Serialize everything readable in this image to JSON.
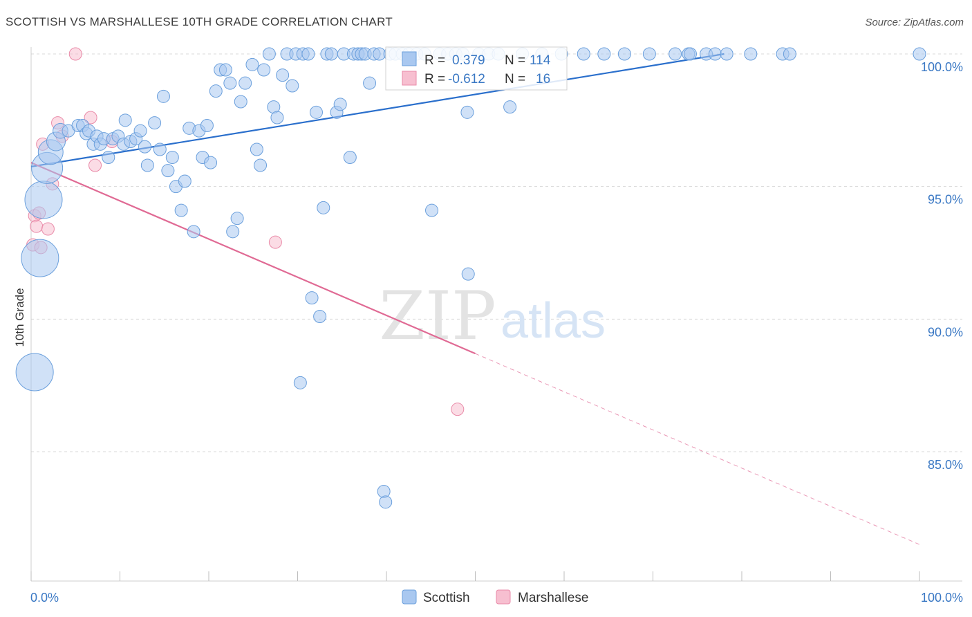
{
  "header": {
    "title": "SCOTTISH VS MARSHALLESE 10TH GRADE CORRELATION CHART",
    "source": "Source: ZipAtlas.com"
  },
  "watermark": {
    "zip": "ZIP",
    "atlas": "atlas"
  },
  "colors": {
    "scottish_fill": "#a9c8f0",
    "scottish_stroke": "#6a9fdc",
    "scottish_line": "#2a6fcc",
    "marshallese_fill": "#f7bfd0",
    "marshallese_stroke": "#e98aa8",
    "marshallese_line": "#e06a94",
    "axis_label": "#3a78c4",
    "grid": "#d8d8d8"
  },
  "legend_box": {
    "rows": [
      {
        "r_label": "R =",
        "r_value": "0.379",
        "n_label": "N =",
        "n_value": "114"
      },
      {
        "r_label": "R =",
        "r_value": "-0.612",
        "n_label": "N =",
        "n_value": "16"
      }
    ]
  },
  "bottom_legend": [
    "Scottish",
    "Marshallese"
  ],
  "chart_data": {
    "type": "scatter",
    "title": "SCOTTISH VS MARSHALLESE 10TH GRADE CORRELATION CHART",
    "xlabel": "",
    "ylabel": "10th Grade",
    "xlim": [
      0,
      100
    ],
    "ylim": [
      80.7,
      100.7
    ],
    "x_tick_labels": [
      "0.0%",
      "100.0%"
    ],
    "y_ticks": [
      85,
      90,
      95,
      100
    ],
    "y_tick_labels": [
      "85.0%",
      "90.0%",
      "95.0%",
      "100.0%"
    ],
    "grid": true,
    "legend_position": "bottom-center",
    "series": [
      {
        "name": "Scottish",
        "R": 0.379,
        "N": 114,
        "trend": {
          "x": [
            0,
            78
          ],
          "y": [
            95.75,
            100.0
          ]
        },
        "points": [
          {
            "x": 0.4,
            "y": 88.0,
            "s": 3
          },
          {
            "x": 1.0,
            "y": 92.3,
            "s": 3
          },
          {
            "x": 1.4,
            "y": 94.5,
            "s": 3
          },
          {
            "x": 1.8,
            "y": 95.7,
            "s": 2.5
          },
          {
            "x": 2.2,
            "y": 96.3,
            "s": 2
          },
          {
            "x": 2.8,
            "y": 96.7,
            "s": 1.5
          },
          {
            "x": 3.3,
            "y": 97.1,
            "s": 1.2
          },
          {
            "x": 4.2,
            "y": 97.1,
            "s": 1
          },
          {
            "x": 5.3,
            "y": 97.3,
            "s": 1
          },
          {
            "x": 5.8,
            "y": 97.3,
            "s": 1
          },
          {
            "x": 6.2,
            "y": 97.0,
            "s": 1
          },
          {
            "x": 6.5,
            "y": 97.1,
            "s": 1
          },
          {
            "x": 7.0,
            "y": 96.6,
            "s": 1
          },
          {
            "x": 7.4,
            "y": 96.9,
            "s": 1
          },
          {
            "x": 7.8,
            "y": 96.6,
            "s": 1
          },
          {
            "x": 8.2,
            "y": 96.8,
            "s": 1
          },
          {
            "x": 8.7,
            "y": 96.1,
            "s": 1
          },
          {
            "x": 9.2,
            "y": 96.8,
            "s": 1
          },
          {
            "x": 9.8,
            "y": 96.9,
            "s": 1
          },
          {
            "x": 10.4,
            "y": 96.6,
            "s": 1
          },
          {
            "x": 10.6,
            "y": 97.5,
            "s": 1
          },
          {
            "x": 11.2,
            "y": 96.7,
            "s": 1
          },
          {
            "x": 11.8,
            "y": 96.8,
            "s": 1
          },
          {
            "x": 12.3,
            "y": 97.1,
            "s": 1
          },
          {
            "x": 12.8,
            "y": 96.5,
            "s": 1
          },
          {
            "x": 13.1,
            "y": 95.8,
            "s": 1
          },
          {
            "x": 13.9,
            "y": 97.4,
            "s": 1
          },
          {
            "x": 14.5,
            "y": 96.4,
            "s": 1
          },
          {
            "x": 14.9,
            "y": 98.4,
            "s": 1
          },
          {
            "x": 15.4,
            "y": 95.6,
            "s": 1
          },
          {
            "x": 15.9,
            "y": 96.1,
            "s": 1
          },
          {
            "x": 16.3,
            "y": 95.0,
            "s": 1
          },
          {
            "x": 16.9,
            "y": 94.1,
            "s": 1
          },
          {
            "x": 17.3,
            "y": 95.2,
            "s": 1
          },
          {
            "x": 17.8,
            "y": 97.2,
            "s": 1
          },
          {
            "x": 18.3,
            "y": 93.3,
            "s": 1
          },
          {
            "x": 18.9,
            "y": 97.1,
            "s": 1
          },
          {
            "x": 19.3,
            "y": 96.1,
            "s": 1
          },
          {
            "x": 19.8,
            "y": 97.3,
            "s": 1
          },
          {
            "x": 20.2,
            "y": 95.9,
            "s": 1
          },
          {
            "x": 20.8,
            "y": 98.6,
            "s": 1
          },
          {
            "x": 21.3,
            "y": 99.4,
            "s": 1
          },
          {
            "x": 21.9,
            "y": 99.4,
            "s": 1
          },
          {
            "x": 22.4,
            "y": 98.9,
            "s": 1
          },
          {
            "x": 22.7,
            "y": 93.3,
            "s": 1
          },
          {
            "x": 23.2,
            "y": 93.8,
            "s": 1
          },
          {
            "x": 23.6,
            "y": 98.2,
            "s": 1
          },
          {
            "x": 24.1,
            "y": 98.9,
            "s": 1
          },
          {
            "x": 24.9,
            "y": 99.6,
            "s": 1
          },
          {
            "x": 25.4,
            "y": 96.4,
            "s": 1
          },
          {
            "x": 25.8,
            "y": 95.8,
            "s": 1
          },
          {
            "x": 26.2,
            "y": 99.4,
            "s": 1
          },
          {
            "x": 26.8,
            "y": 100.0,
            "s": 1
          },
          {
            "x": 27.3,
            "y": 98.0,
            "s": 1
          },
          {
            "x": 27.7,
            "y": 97.6,
            "s": 1
          },
          {
            "x": 28.3,
            "y": 99.2,
            "s": 1
          },
          {
            "x": 28.8,
            "y": 100.0,
            "s": 1
          },
          {
            "x": 29.4,
            "y": 98.8,
            "s": 1
          },
          {
            "x": 29.8,
            "y": 100.0,
            "s": 1
          },
          {
            "x": 30.3,
            "y": 87.6,
            "s": 1
          },
          {
            "x": 30.6,
            "y": 100.0,
            "s": 1
          },
          {
            "x": 31.2,
            "y": 100.0,
            "s": 1
          },
          {
            "x": 31.6,
            "y": 90.8,
            "s": 1
          },
          {
            "x": 32.1,
            "y": 97.8,
            "s": 1
          },
          {
            "x": 32.5,
            "y": 90.1,
            "s": 1
          },
          {
            "x": 32.9,
            "y": 94.2,
            "s": 1
          },
          {
            "x": 33.3,
            "y": 100.0,
            "s": 1
          },
          {
            "x": 33.8,
            "y": 100.0,
            "s": 1
          },
          {
            "x": 34.4,
            "y": 97.8,
            "s": 1
          },
          {
            "x": 34.8,
            "y": 98.1,
            "s": 1
          },
          {
            "x": 35.2,
            "y": 100.0,
            "s": 1
          },
          {
            "x": 35.9,
            "y": 96.1,
            "s": 1
          },
          {
            "x": 36.3,
            "y": 100.0,
            "s": 1
          },
          {
            "x": 36.8,
            "y": 100.0,
            "s": 1
          },
          {
            "x": 37.2,
            "y": 100.0,
            "s": 1
          },
          {
            "x": 37.6,
            "y": 100.0,
            "s": 1
          },
          {
            "x": 38.1,
            "y": 98.9,
            "s": 1
          },
          {
            "x": 38.6,
            "y": 100.0,
            "s": 1
          },
          {
            "x": 39.2,
            "y": 100.0,
            "s": 1
          },
          {
            "x": 39.7,
            "y": 83.5,
            "s": 1
          },
          {
            "x": 39.9,
            "y": 83.1,
            "s": 1
          },
          {
            "x": 40.4,
            "y": 100.0,
            "s": 1
          },
          {
            "x": 41.0,
            "y": 100.0,
            "s": 1
          },
          {
            "x": 41.8,
            "y": 100.0,
            "s": 1
          },
          {
            "x": 42.5,
            "y": 100.0,
            "s": 1
          },
          {
            "x": 43.4,
            "y": 100.0,
            "s": 1
          },
          {
            "x": 44.3,
            "y": 100.0,
            "s": 1
          },
          {
            "x": 45.1,
            "y": 94.1,
            "s": 1
          },
          {
            "x": 46.0,
            "y": 100.0,
            "s": 1
          },
          {
            "x": 46.9,
            "y": 100.0,
            "s": 1
          },
          {
            "x": 47.8,
            "y": 100.0,
            "s": 1
          },
          {
            "x": 48.6,
            "y": 100.0,
            "s": 1
          },
          {
            "x": 49.2,
            "y": 91.7,
            "s": 1
          },
          {
            "x": 49.1,
            "y": 97.8,
            "s": 1
          },
          {
            "x": 50.4,
            "y": 100.0,
            "s": 1
          },
          {
            "x": 51.5,
            "y": 100.0,
            "s": 1
          },
          {
            "x": 52.6,
            "y": 100.0,
            "s": 1
          },
          {
            "x": 53.9,
            "y": 98.0,
            "s": 1
          },
          {
            "x": 55.3,
            "y": 100.0,
            "s": 1
          },
          {
            "x": 57.5,
            "y": 100.0,
            "s": 1
          },
          {
            "x": 59.7,
            "y": 100.0,
            "s": 1
          },
          {
            "x": 62.2,
            "y": 100.0,
            "s": 1
          },
          {
            "x": 64.5,
            "y": 100.0,
            "s": 1
          },
          {
            "x": 66.8,
            "y": 100.0,
            "s": 1
          },
          {
            "x": 69.6,
            "y": 100.0,
            "s": 1
          },
          {
            "x": 72.5,
            "y": 100.0,
            "s": 1
          },
          {
            "x": 74.0,
            "y": 100.0,
            "s": 1
          },
          {
            "x": 74.2,
            "y": 100.0,
            "s": 1
          },
          {
            "x": 76.0,
            "y": 100.0,
            "s": 1
          },
          {
            "x": 77.0,
            "y": 100.0,
            "s": 1
          },
          {
            "x": 78.3,
            "y": 100.0,
            "s": 1
          },
          {
            "x": 81.0,
            "y": 100.0,
            "s": 1
          },
          {
            "x": 84.6,
            "y": 100.0,
            "s": 1
          },
          {
            "x": 85.4,
            "y": 100.0,
            "s": 1
          },
          {
            "x": 100.0,
            "y": 100.0,
            "s": 1
          }
        ]
      },
      {
        "name": "Marshallese",
        "R": -0.612,
        "N": 16,
        "trend": {
          "x": [
            0,
            50
          ],
          "y": [
            95.9,
            88.7
          ]
        },
        "trend_dashed": {
          "x": [
            50,
            100
          ],
          "y": [
            88.7,
            81.5
          ]
        },
        "points": [
          {
            "x": 0.2,
            "y": 92.8,
            "s": 1
          },
          {
            "x": 0.4,
            "y": 93.9,
            "s": 1
          },
          {
            "x": 0.6,
            "y": 93.5,
            "s": 1
          },
          {
            "x": 0.9,
            "y": 94.0,
            "s": 1
          },
          {
            "x": 1.1,
            "y": 92.7,
            "s": 1
          },
          {
            "x": 1.3,
            "y": 96.6,
            "s": 1
          },
          {
            "x": 1.9,
            "y": 93.4,
            "s": 1
          },
          {
            "x": 2.4,
            "y": 95.1,
            "s": 1
          },
          {
            "x": 3.0,
            "y": 97.4,
            "s": 1
          },
          {
            "x": 3.5,
            "y": 96.9,
            "s": 1
          },
          {
            "x": 5.0,
            "y": 100.0,
            "s": 1
          },
          {
            "x": 6.7,
            "y": 97.6,
            "s": 1
          },
          {
            "x": 7.2,
            "y": 95.8,
            "s": 1
          },
          {
            "x": 9.1,
            "y": 96.7,
            "s": 1
          },
          {
            "x": 27.5,
            "y": 92.9,
            "s": 1
          },
          {
            "x": 48.0,
            "y": 86.6,
            "s": 1
          }
        ]
      }
    ]
  }
}
